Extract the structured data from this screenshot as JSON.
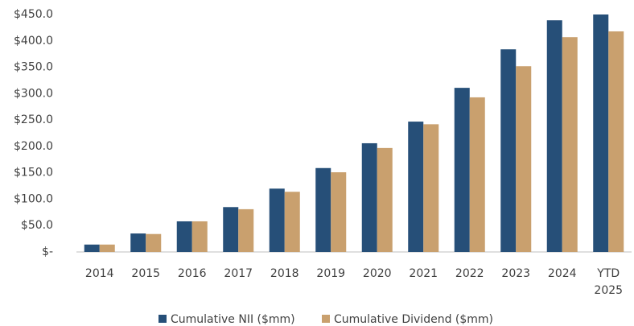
{
  "chart_data": {
    "type": "bar",
    "categories": [
      "2014",
      "2015",
      "2016",
      "2017",
      "2018",
      "2019",
      "2020",
      "2021",
      "2022",
      "2023",
      "2024",
      "YTD 2025"
    ],
    "series": [
      {
        "name": "Cumulative NII ($mm)",
        "color": "#264f78",
        "values": [
          14,
          35,
          58,
          85,
          120,
          159,
          206,
          247,
          311,
          384,
          439,
          450
        ]
      },
      {
        "name": "Cumulative Dividend ($mm)",
        "color": "#c9a06e",
        "values": [
          14,
          34,
          58,
          81,
          114,
          151,
          197,
          242,
          293,
          352,
          407,
          418
        ]
      }
    ],
    "ylim": [
      0,
      450
    ],
    "yticks": [
      {
        "value": 0,
        "label": "$-"
      },
      {
        "value": 50,
        "label": "$50.0"
      },
      {
        "value": 100,
        "label": "$100.0"
      },
      {
        "value": 150,
        "label": "$150.0"
      },
      {
        "value": 200,
        "label": "$200.0"
      },
      {
        "value": 250,
        "label": "$250.0"
      },
      {
        "value": 300,
        "label": "$300.0"
      },
      {
        "value": 350,
        "label": "$350.0"
      },
      {
        "value": 400,
        "label": "$400.0"
      },
      {
        "value": 450,
        "label": "$450.0"
      }
    ],
    "grid": false,
    "legend": "bottom"
  }
}
